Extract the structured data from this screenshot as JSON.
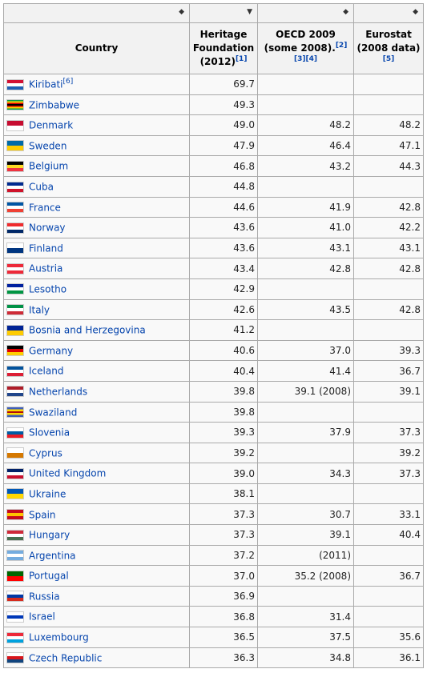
{
  "headers": {
    "country": "Country",
    "heritage_line1": "Heritage",
    "heritage_line2": "Foundation",
    "heritage_line3": "(2012)",
    "heritage_ref": "[1]",
    "oecd_line1": "OECD 2009",
    "oecd_line2": "(some 2008).",
    "oecd_ref": "[2][3][4]",
    "eurostat_line1": "Eurostat",
    "eurostat_line2": "(2008 data)",
    "eurostat_ref": "[5]"
  },
  "rows": [
    {
      "country": "Kiribati",
      "ref": "[6]",
      "heritage": "69.7",
      "oecd": "",
      "eurostat": "",
      "flag": [
        "#d21034",
        "#ffffff",
        "#1f5fb3"
      ]
    },
    {
      "country": "Zimbabwe",
      "ref": "",
      "heritage": "49.3",
      "oecd": "",
      "eurostat": "",
      "flag": [
        "#009b4d",
        "#ffd200",
        "#d40000",
        "#000000",
        "#d40000",
        "#ffd200",
        "#009b4d"
      ]
    },
    {
      "country": "Denmark",
      "ref": "",
      "heritage": "49.0",
      "oecd": "48.2",
      "eurostat": "48.2",
      "flag": [
        "#c60c30",
        "#ffffff"
      ]
    },
    {
      "country": "Sweden",
      "ref": "",
      "heritage": "47.9",
      "oecd": "46.4",
      "eurostat": "47.1",
      "flag": [
        "#006aa7",
        "#fecc00"
      ]
    },
    {
      "country": "Belgium",
      "ref": "",
      "heritage": "46.8",
      "oecd": "43.2",
      "eurostat": "44.3",
      "flag": [
        "#000000",
        "#fdda24",
        "#ef3340"
      ]
    },
    {
      "country": "Cuba",
      "ref": "",
      "heritage": "44.8",
      "oecd": "",
      "eurostat": "",
      "flag": [
        "#002a8f",
        "#ffffff",
        "#cf142b"
      ]
    },
    {
      "country": "France",
      "ref": "",
      "heritage": "44.6",
      "oecd": "41.9",
      "eurostat": "42.8",
      "flag": [
        "#0055a4",
        "#ffffff",
        "#ef4135"
      ]
    },
    {
      "country": "Norway",
      "ref": "",
      "heritage": "43.6",
      "oecd": "41.0",
      "eurostat": "42.2",
      "flag": [
        "#ef2b2d",
        "#ffffff",
        "#002868"
      ]
    },
    {
      "country": "Finland",
      "ref": "",
      "heritage": "43.6",
      "oecd": "43.1",
      "eurostat": "43.1",
      "flag": [
        "#ffffff",
        "#003580"
      ]
    },
    {
      "country": "Austria",
      "ref": "",
      "heritage": "43.4",
      "oecd": "42.8",
      "eurostat": "42.8",
      "flag": [
        "#ed2939",
        "#ffffff",
        "#ed2939"
      ]
    },
    {
      "country": "Lesotho",
      "ref": "",
      "heritage": "42.9",
      "oecd": "",
      "eurostat": "",
      "flag": [
        "#00209f",
        "#ffffff",
        "#009543"
      ]
    },
    {
      "country": "Italy",
      "ref": "",
      "heritage": "42.6",
      "oecd": "43.5",
      "eurostat": "42.8",
      "flag": [
        "#009246",
        "#ffffff",
        "#ce2b37"
      ]
    },
    {
      "country": "Bosnia and Herzegovina",
      "ref": "",
      "heritage": "41.2",
      "oecd": "",
      "eurostat": "",
      "flag": [
        "#002395",
        "#fecb00"
      ]
    },
    {
      "country": "Germany",
      "ref": "",
      "heritage": "40.6",
      "oecd": "37.0",
      "eurostat": "39.3",
      "flag": [
        "#000000",
        "#dd0000",
        "#ffce00"
      ]
    },
    {
      "country": "Iceland",
      "ref": "",
      "heritage": "40.4",
      "oecd": "41.4",
      "eurostat": "36.7",
      "flag": [
        "#02529c",
        "#ffffff",
        "#dc1e35"
      ]
    },
    {
      "country": "Netherlands",
      "ref": "",
      "heritage": "39.8",
      "oecd": "39.1 (2008)",
      "eurostat": "39.1",
      "flag": [
        "#ae1c28",
        "#ffffff",
        "#21468b"
      ]
    },
    {
      "country": "Swaziland",
      "ref": "",
      "heritage": "39.8",
      "oecd": "",
      "eurostat": "",
      "flag": [
        "#3e5eb9",
        "#ffd900",
        "#b10c0c",
        "#ffd900",
        "#3e5eb9"
      ]
    },
    {
      "country": "Slovenia",
      "ref": "",
      "heritage": "39.3",
      "oecd": "37.9",
      "eurostat": "37.3",
      "flag": [
        "#ffffff",
        "#005da4",
        "#ed1c24"
      ]
    },
    {
      "country": "Cyprus",
      "ref": "",
      "heritage": "39.2",
      "oecd": "",
      "eurostat": "39.2",
      "flag": [
        "#ffffff",
        "#d57800"
      ]
    },
    {
      "country": "United Kingdom",
      "ref": "",
      "heritage": "39.0",
      "oecd": "34.3",
      "eurostat": "37.3",
      "flag": [
        "#012169",
        "#ffffff",
        "#c8102e"
      ]
    },
    {
      "country": "Ukraine",
      "ref": "",
      "heritage": "38.1",
      "oecd": "",
      "eurostat": "",
      "flag": [
        "#0057b7",
        "#ffd700"
      ]
    },
    {
      "country": "Spain",
      "ref": "",
      "heritage": "37.3",
      "oecd": "30.7",
      "eurostat": "33.1",
      "flag": [
        "#c60b1e",
        "#ffc400",
        "#c60b1e"
      ]
    },
    {
      "country": "Hungary",
      "ref": "",
      "heritage": "37.3",
      "oecd": "39.1",
      "eurostat": "40.4",
      "flag": [
        "#ce2939",
        "#ffffff",
        "#477050"
      ]
    },
    {
      "country": "Argentina",
      "ref": "",
      "heritage": "37.2",
      "oecd": "(2011)",
      "eurostat": "",
      "flag": [
        "#74acdf",
        "#ffffff",
        "#74acdf"
      ]
    },
    {
      "country": "Portugal",
      "ref": "",
      "heritage": "37.0",
      "oecd": "35.2 (2008)",
      "eurostat": "36.7",
      "flag": [
        "#006600",
        "#ff0000"
      ]
    },
    {
      "country": "Russia",
      "ref": "",
      "heritage": "36.9",
      "oecd": "",
      "eurostat": "",
      "flag": [
        "#ffffff",
        "#0039a6",
        "#d52b1e"
      ]
    },
    {
      "country": "Israel",
      "ref": "",
      "heritage": "36.8",
      "oecd": "31.4",
      "eurostat": "",
      "flag": [
        "#ffffff",
        "#0038b8",
        "#ffffff"
      ]
    },
    {
      "country": "Luxembourg",
      "ref": "",
      "heritage": "36.5",
      "oecd": "37.5",
      "eurostat": "35.6",
      "flag": [
        "#ed2939",
        "#ffffff",
        "#00a1de"
      ]
    },
    {
      "country": "Czech Republic",
      "ref": "",
      "heritage": "36.3",
      "oecd": "34.8",
      "eurostat": "36.1",
      "flag": [
        "#ffffff",
        "#d7141a",
        "#11457e"
      ]
    }
  ]
}
